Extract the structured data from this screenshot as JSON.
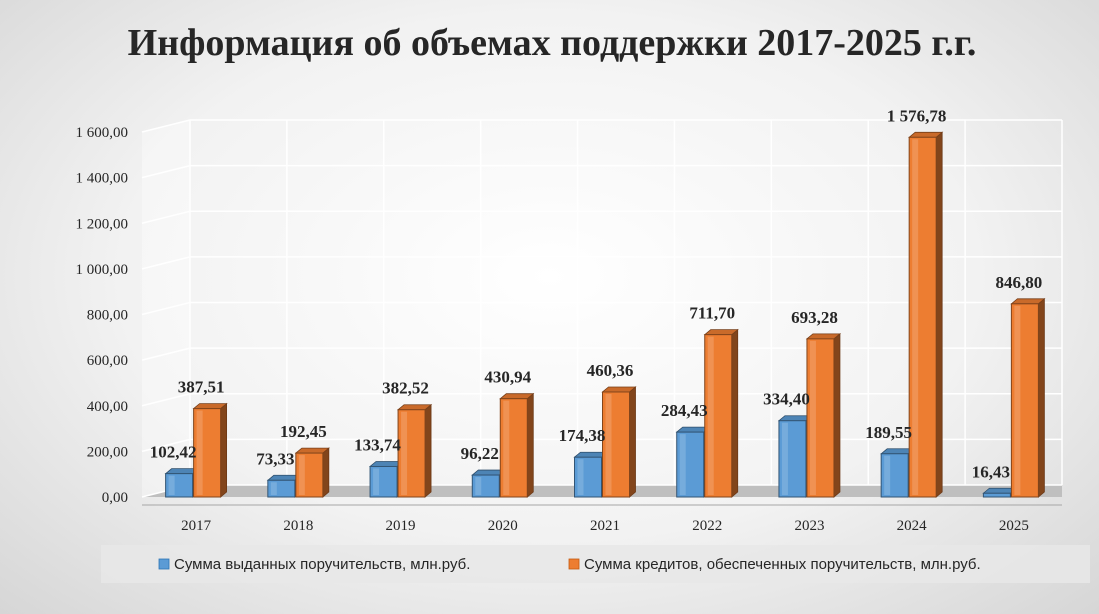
{
  "chart_data": {
    "type": "bar",
    "title": "Информация об объемах поддержки 2017-2025 г.г.",
    "categories": [
      "2017",
      "2018",
      "2019",
      "2020",
      "2021",
      "2022",
      "2023",
      "2024",
      "2025"
    ],
    "series": [
      {
        "name": "Сумма выданных поручительств, млн.руб.",
        "values": [
          102.42,
          73.33,
          133.74,
          96.22,
          174.38,
          284.43,
          334.4,
          189.55,
          16.43
        ],
        "labels": [
          "102,42",
          "73,33",
          "133,74",
          "96,22",
          "174,38",
          "284,43",
          "334,40",
          "189,55",
          "16,43"
        ],
        "color": "#5b9bd5"
      },
      {
        "name": "Сумма кредитов, обеспеченных поручительств, млн.руб.",
        "values": [
          387.51,
          192.45,
          382.52,
          430.94,
          460.36,
          711.7,
          693.28,
          1576.78,
          846.8
        ],
        "labels": [
          "387,51",
          "192,45",
          "382,52",
          "430,94",
          "460,36",
          "711,70",
          "693,28",
          "1 576,78",
          "846,80"
        ],
        "color": "#ed7d31"
      }
    ],
    "ylim": [
      0,
      1600
    ],
    "yticks": [
      0,
      200,
      400,
      600,
      800,
      1000,
      1200,
      1400,
      1600
    ],
    "ytick_labels": [
      "0,00",
      "200,00",
      "400,00",
      "600,00",
      "800,00",
      "1 000,00",
      "1 200,00",
      "1 400,00",
      "1 600,00"
    ],
    "grid": true,
    "legend_position": "bottom",
    "style": "3d-clustered-column"
  }
}
